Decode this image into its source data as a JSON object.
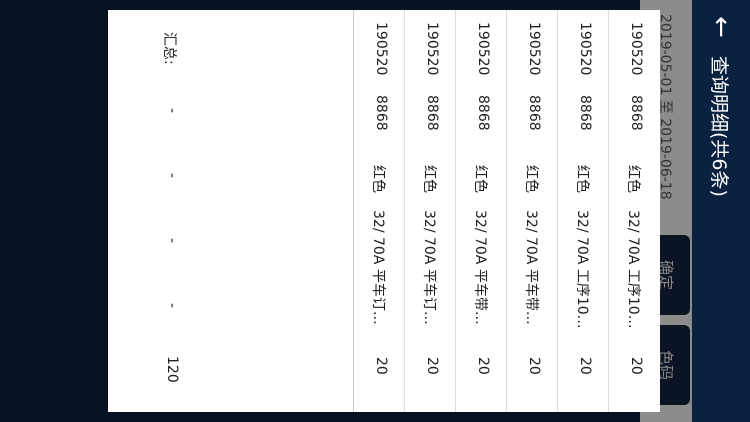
{
  "header": {
    "back_icon": "arrow-left-icon",
    "title": "查询明细(共6条)"
  },
  "filter": {
    "date_range": "2019-05-01 至 2019-06-18",
    "confirm_label": "确定",
    "color_code_label": "色码"
  },
  "colors": {
    "header": "#0b2140",
    "background": "#08111f"
  },
  "rows": [
    [
      "190520",
      "8868",
      "红色",
      "32/ 70A 工序10…",
      "20"
    ],
    [
      "190520",
      "8868",
      "红色",
      "32/ 70A 工序10…",
      "20"
    ],
    [
      "190520",
      "8868",
      "红色",
      "32/ 70A 平车带…",
      "20"
    ],
    [
      "190520",
      "8868",
      "红色",
      "32/ 70A 平车带…",
      "20"
    ],
    [
      "190520",
      "8868",
      "红色",
      "32/ 70A 平车订…",
      "20"
    ],
    [
      "190520",
      "8868",
      "红色",
      "32/ 70A 平车订…",
      "20"
    ]
  ],
  "summary": [
    "汇总:",
    "-",
    "-",
    "-",
    "-",
    "120"
  ]
}
